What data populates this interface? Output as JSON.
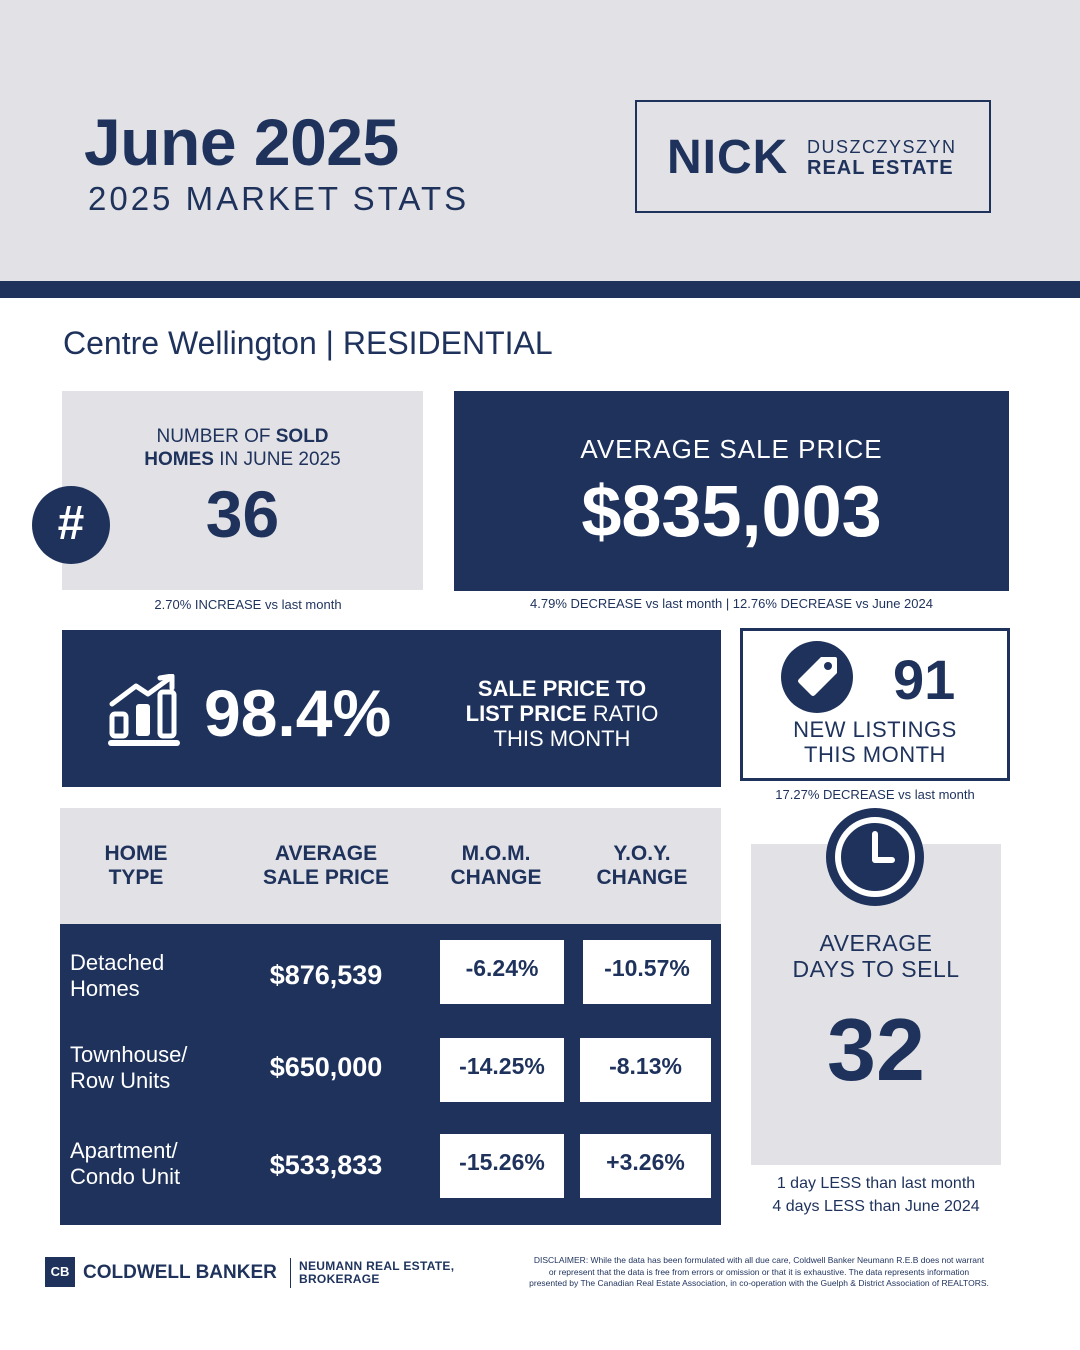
{
  "header": {
    "month_title": "June 2025",
    "subtitle": "2025 MARKET STATS",
    "brand": {
      "first_name": "NICK",
      "surname": "DUSZCZYSZYN",
      "tagline": "REAL ESTATE"
    }
  },
  "section_title": "Centre Wellington | RESIDENTIAL",
  "sold": {
    "label_pre": "NUMBER OF ",
    "label_bold1": "SOLD",
    "label_bold2": "HOMES",
    "label_post": " IN JUNE 2025",
    "icon_glyph": "#",
    "icon": "hash-icon",
    "value": "36",
    "note": "2.70% INCREASE vs last month"
  },
  "avg_price": {
    "label": "AVERAGE SALE PRICE",
    "value": "$835,003",
    "note": "4.79% DECREASE vs last month | 12.76% DECREASE vs June 2024"
  },
  "ratio": {
    "icon": "growth-chart-icon",
    "value": "98.4%",
    "label_bold1": "SALE PRICE TO",
    "label_bold2": "LIST PRICE",
    "label_post": " RATIO",
    "label_line3": "THIS MONTH"
  },
  "listings": {
    "icon": "price-tag-icon",
    "value": "91",
    "label_line1": "NEW LISTINGS",
    "label_line2": "THIS MONTH",
    "note": "17.27% DECREASE vs last month"
  },
  "table": {
    "headers": [
      {
        "line1": "HOME",
        "line2": "TYPE"
      },
      {
        "line1": "AVERAGE",
        "line2": "SALE PRICE"
      },
      {
        "line1": "M.O.M.",
        "line2": "CHANGE"
      },
      {
        "line1": "Y.O.Y.",
        "line2": "CHANGE"
      }
    ],
    "rows": [
      {
        "type_line1": "Detached",
        "type_line2": "Homes",
        "price": "$876,539",
        "mom": "-6.24%",
        "yoy": "-10.57%"
      },
      {
        "type_line1": "Townhouse/",
        "type_line2": "Row Units",
        "price": "$650,000",
        "mom": "-14.25%",
        "yoy": "-8.13%"
      },
      {
        "type_line1": "Apartment/",
        "type_line2": "Condo Unit",
        "price": "$533,833",
        "mom": "-15.26%",
        "yoy": "+3.26%"
      }
    ]
  },
  "days": {
    "icon": "clock-icon",
    "label_line1": "AVERAGE",
    "label_line2": "DAYS TO SELL",
    "value": "32",
    "note_line1": "1 day LESS than last month",
    "note_line2": "4 days LESS than June 2024"
  },
  "footer": {
    "logo_glyph": "CB",
    "brand_name": "COLDWELL BANKER",
    "brokerage_line1": "NEUMANN REAL ESTATE,",
    "brokerage_line2": "BROKERAGE",
    "disclaimer_line1": "DISCLAIMER: While the data has been formulated with all due care, Coldwell Banker Neumann  R.E.B does not warrant",
    "disclaimer_line2": "or represent that the data is free from errors or omission or that it is exhaustive. The data represents information",
    "disclaimer_line3": "presented by The Canadian Real Estate Association, in co-operation with the Guelph & District Association of REALTORS."
  },
  "colors": {
    "navy": "#1e325c",
    "grey": "#e2e2e6",
    "white": "#ffffff"
  }
}
